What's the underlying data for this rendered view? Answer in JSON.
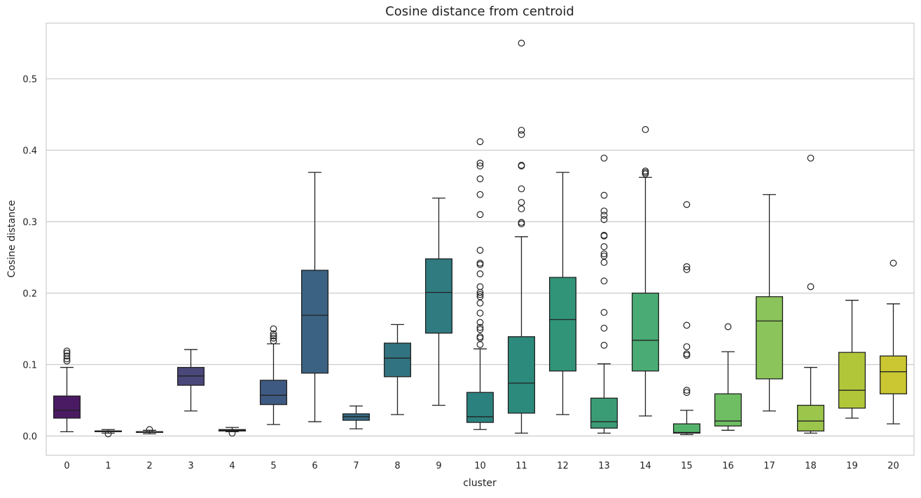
{
  "chart_data": {
    "type": "boxplot",
    "title": "Cosine distance from centroid",
    "xlabel": "cluster",
    "ylabel": "Cosine distance",
    "ylim": [
      -0.027,
      0.578
    ],
    "yticks": [
      0.0,
      0.1,
      0.2,
      0.3,
      0.4,
      0.5
    ],
    "ytick_labels": [
      "0.0",
      "0.1",
      "0.2",
      "0.3",
      "0.4",
      "0.5"
    ],
    "grid": "horizontal",
    "palette": "viridis",
    "categories": [
      "0",
      "1",
      "2",
      "3",
      "4",
      "5",
      "6",
      "7",
      "8",
      "9",
      "10",
      "11",
      "12",
      "13",
      "14",
      "15",
      "16",
      "17",
      "18",
      "19",
      "20"
    ],
    "colors": [
      "#4a1a63",
      "#4b2a6e",
      "#4a3874",
      "#4a477a",
      "#45517c",
      "#3f5a82",
      "#3b6282",
      "#356b84",
      "#327381",
      "#2f7b80",
      "#2b817d",
      "#2c8a7c",
      "#319479",
      "#3a9c75",
      "#4aab74",
      "#55b46c",
      "#6fbe64",
      "#8bc45a",
      "#9cc54c",
      "#b2c63a",
      "#cac732"
    ],
    "boxes": [
      {
        "whislo": 0.006,
        "q1": 0.025,
        "med": 0.036,
        "q3": 0.056,
        "whishi": 0.096,
        "fliers": [
          0.105,
          0.108,
          0.112,
          0.116,
          0.119
        ]
      },
      {
        "whislo": 0.004,
        "q1": 0.006,
        "med": 0.007,
        "q3": 0.007,
        "whishi": 0.009,
        "fliers": [
          0.003
        ]
      },
      {
        "whislo": 0.003,
        "q1": 0.005,
        "med": 0.006,
        "q3": 0.006,
        "whishi": 0.008,
        "fliers": [
          0.009
        ]
      },
      {
        "whislo": 0.035,
        "q1": 0.071,
        "med": 0.084,
        "q3": 0.096,
        "whishi": 0.121,
        "fliers": []
      },
      {
        "whislo": 0.006,
        "q1": 0.007,
        "med": 0.008,
        "q3": 0.009,
        "whishi": 0.012,
        "fliers": [
          0.004
        ]
      },
      {
        "whislo": 0.016,
        "q1": 0.044,
        "med": 0.057,
        "q3": 0.078,
        "whishi": 0.129,
        "fliers": [
          0.133,
          0.137,
          0.14,
          0.143,
          0.15
        ]
      },
      {
        "whislo": 0.02,
        "q1": 0.088,
        "med": 0.169,
        "q3": 0.232,
        "whishi": 0.369,
        "fliers": []
      },
      {
        "whislo": 0.01,
        "q1": 0.022,
        "med": 0.027,
        "q3": 0.031,
        "whishi": 0.042,
        "fliers": []
      },
      {
        "whislo": 0.03,
        "q1": 0.083,
        "med": 0.109,
        "q3": 0.13,
        "whishi": 0.156,
        "fliers": []
      },
      {
        "whislo": 0.043,
        "q1": 0.144,
        "med": 0.201,
        "q3": 0.248,
        "whishi": 0.333,
        "fliers": []
      },
      {
        "whislo": 0.009,
        "q1": 0.019,
        "med": 0.027,
        "q3": 0.061,
        "whishi": 0.122,
        "fliers": [
          0.128,
          0.137,
          0.139,
          0.149,
          0.152,
          0.159,
          0.172,
          0.186,
          0.195,
          0.198,
          0.201,
          0.209,
          0.227,
          0.24,
          0.242,
          0.26,
          0.31,
          0.338,
          0.36,
          0.378,
          0.382,
          0.412
        ]
      },
      {
        "whislo": 0.004,
        "q1": 0.032,
        "med": 0.074,
        "q3": 0.139,
        "whishi": 0.279,
        "fliers": [
          0.297,
          0.299,
          0.318,
          0.327,
          0.346,
          0.378,
          0.379,
          0.422,
          0.428,
          0.55
        ]
      },
      {
        "whislo": 0.03,
        "q1": 0.091,
        "med": 0.163,
        "q3": 0.222,
        "whishi": 0.369,
        "fliers": []
      },
      {
        "whislo": 0.004,
        "q1": 0.011,
        "med": 0.02,
        "q3": 0.053,
        "whishi": 0.101,
        "fliers": [
          0.127,
          0.151,
          0.173,
          0.217,
          0.243,
          0.252,
          0.255,
          0.265,
          0.28,
          0.281,
          0.303,
          0.309,
          0.315,
          0.337,
          0.389
        ]
      },
      {
        "whislo": 0.028,
        "q1": 0.091,
        "med": 0.134,
        "q3": 0.2,
        "whishi": 0.362,
        "fliers": [
          0.367,
          0.369,
          0.371,
          0.429
        ]
      },
      {
        "whislo": 0.002,
        "q1": 0.004,
        "med": 0.005,
        "q3": 0.017,
        "whishi": 0.036,
        "fliers": [
          0.061,
          0.064,
          0.113,
          0.115,
          0.125,
          0.155,
          0.233,
          0.237,
          0.324
        ]
      },
      {
        "whislo": 0.008,
        "q1": 0.014,
        "med": 0.021,
        "q3": 0.059,
        "whishi": 0.118,
        "fliers": [
          0.153
        ]
      },
      {
        "whislo": 0.035,
        "q1": 0.08,
        "med": 0.161,
        "q3": 0.195,
        "whishi": 0.338,
        "fliers": []
      },
      {
        "whislo": 0.004,
        "q1": 0.007,
        "med": 0.021,
        "q3": 0.043,
        "whishi": 0.096,
        "fliers": [
          0.209,
          0.389
        ]
      },
      {
        "whislo": 0.025,
        "q1": 0.039,
        "med": 0.064,
        "q3": 0.117,
        "whishi": 0.19,
        "fliers": []
      },
      {
        "whislo": 0.017,
        "q1": 0.059,
        "med": 0.09,
        "q3": 0.112,
        "whishi": 0.185,
        "fliers": [
          0.242
        ]
      }
    ]
  }
}
